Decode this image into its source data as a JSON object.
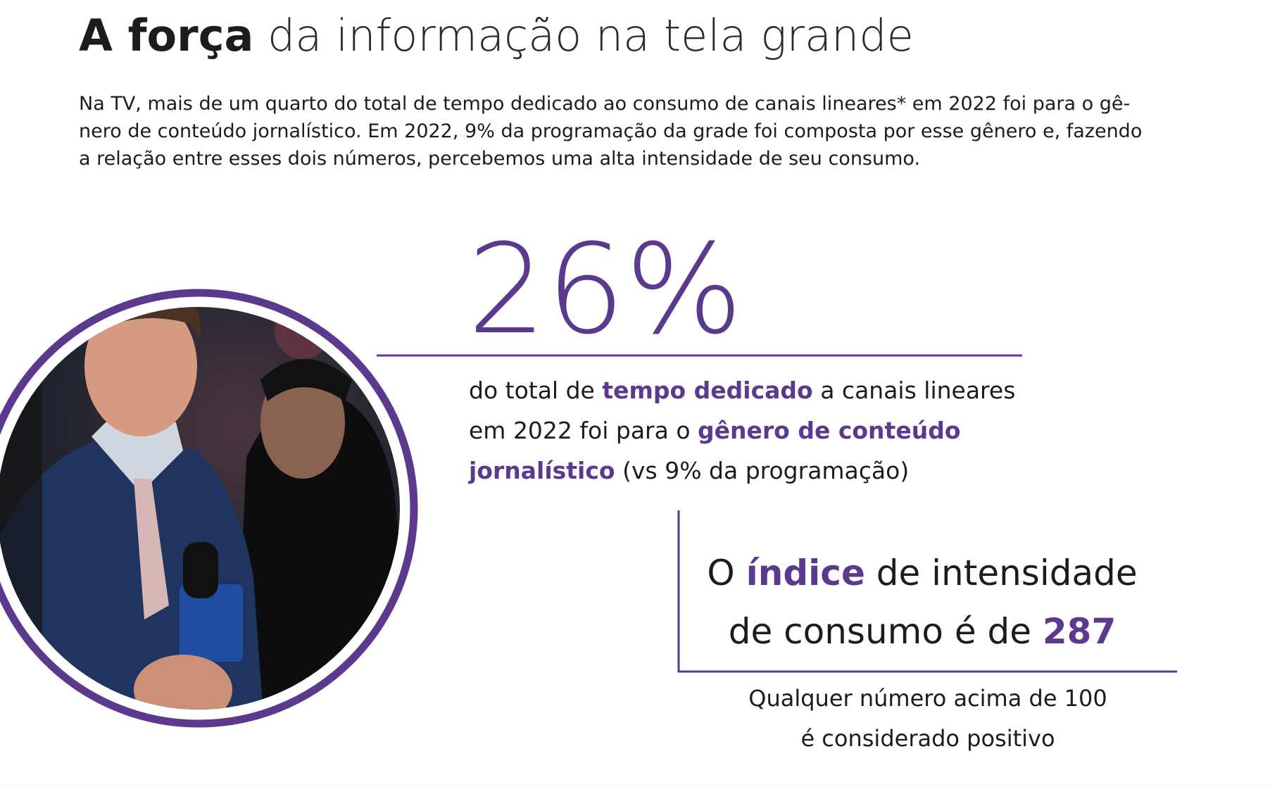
{
  "header": {
    "title_bold": "A força",
    "title_light": "da informação na tela grande"
  },
  "intro": {
    "lines": [
      "Na TV, mais de um quarto do total de tempo dedicado ao consumo de canais lineares* em 2022 foi para o gê-",
      "nero de conteúdo jornalístico. Em 2022, 9% da programação da grade foi composta por esse gênero e, fazendo",
      "a relação entre esses dois números, percebemos uma alta intensidade de seu consumo."
    ]
  },
  "stat": {
    "value": "26%",
    "description": [
      [
        "do total de",
        "tempo dedicado",
        "a canais lineares"
      ],
      [
        "em 2022 foi para o",
        "gênero de conteúdo"
      ],
      [
        "jornalístico",
        "(vs 9% da programação)"
      ]
    ]
  },
  "index": {
    "lines": [
      [
        "O",
        "índice",
        "de intensidade"
      ],
      [
        "de consumo é de",
        "287"
      ]
    ],
    "note": [
      "Qualquer número acima de 100",
      "é considerado positivo"
    ]
  }
}
